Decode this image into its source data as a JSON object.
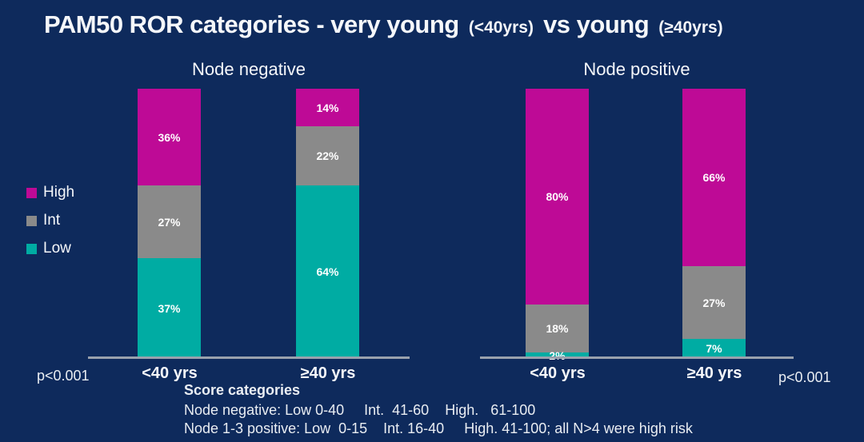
{
  "title": {
    "parts": [
      "PAM50 ROR categories - very young ",
      "(<40yrs)",
      " vs young ",
      "(≥40yrs)"
    ]
  },
  "colors": {
    "background": "#0E2A5C",
    "high": "#BE0A96",
    "int": "#8A8A8A",
    "low": "#00ACA3",
    "axis": "#99A1AD",
    "text": "#FFFFFF"
  },
  "legend": {
    "items": [
      {
        "label": "High",
        "color_key": "high"
      },
      {
        "label": "Int",
        "color_key": "int"
      },
      {
        "label": "Low",
        "color_key": "low"
      }
    ]
  },
  "charts": [
    {
      "name": "node-negative",
      "title": "Node negative",
      "p_value": "p<0.001",
      "bars": [
        {
          "category": "<40 yrs",
          "segments": [
            {
              "series": "High",
              "value": 36,
              "label": "36%"
            },
            {
              "series": "Int",
              "value": 27,
              "label": "27%"
            },
            {
              "series": "Low",
              "value": 37,
              "label": "37%"
            }
          ]
        },
        {
          "category": "≥40 yrs",
          "segments": [
            {
              "series": "High",
              "value": 14,
              "label": "14%"
            },
            {
              "series": "Int",
              "value": 22,
              "label": "22%"
            },
            {
              "series": "Low",
              "value": 64,
              "label": "64%"
            }
          ]
        }
      ]
    },
    {
      "name": "node-positive",
      "title": "Node positive",
      "p_value": "p<0.001",
      "bars": [
        {
          "category": "<40 yrs",
          "segments": [
            {
              "series": "High",
              "value": 80,
              "label": "80%"
            },
            {
              "series": "Int",
              "value": 18,
              "label": "18%"
            },
            {
              "series": "Low",
              "value": 2,
              "label": "2%"
            }
          ]
        },
        {
          "category": "≥40 yrs",
          "segments": [
            {
              "series": "High",
              "value": 66,
              "label": "66%"
            },
            {
              "series": "Int",
              "value": 27,
              "label": "27%"
            },
            {
              "series": "Low",
              "value": 7,
              "label": "7%"
            }
          ]
        }
      ]
    }
  ],
  "footnote": {
    "heading": "Score categories",
    "lines": [
      "Node negative: Low 0-40     Int.  41-60    High.   61-100",
      "Node 1-3 positive: Low  0-15    Int. 16-40     High. 41-100; all N>4 were high risk"
    ]
  },
  "chart_data": [
    {
      "type": "bar",
      "subtype": "stacked-100-percent",
      "title": "Node negative",
      "categories": [
        "<40 yrs",
        "≥40 yrs"
      ],
      "series": [
        {
          "name": "High",
          "values": [
            36,
            14
          ]
        },
        {
          "name": "Int",
          "values": [
            27,
            22
          ]
        },
        {
          "name": "Low",
          "values": [
            37,
            64
          ]
        }
      ],
      "unit": "%",
      "ylim": [
        0,
        100
      ],
      "grid": false,
      "legend_position": "left",
      "annotation": "p<0.001"
    },
    {
      "type": "bar",
      "subtype": "stacked-100-percent",
      "title": "Node positive",
      "categories": [
        "<40 yrs",
        "≥40 yrs"
      ],
      "series": [
        {
          "name": "High",
          "values": [
            80,
            66
          ]
        },
        {
          "name": "Int",
          "values": [
            18,
            27
          ]
        },
        {
          "name": "Low",
          "values": [
            2,
            7
          ]
        }
      ],
      "unit": "%",
      "ylim": [
        0,
        100
      ],
      "grid": false,
      "legend_position": "left",
      "annotation": "p<0.001"
    }
  ]
}
